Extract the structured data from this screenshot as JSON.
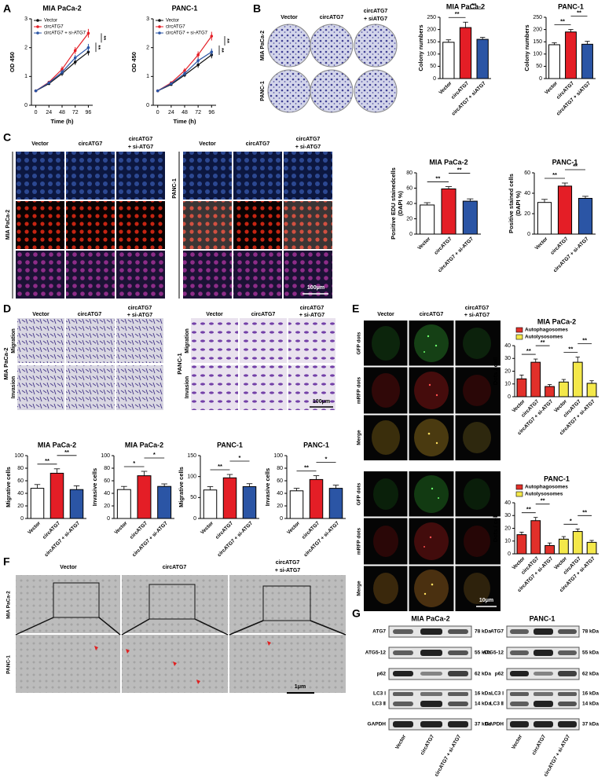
{
  "figure": {
    "panel_labels": [
      "A",
      "B",
      "C",
      "D",
      "E",
      "F",
      "G"
    ],
    "header": {
      "vector": "Vector",
      "circ": "circATG7",
      "si_b": "+ siATG7",
      "si": "+ si-ATG7"
    },
    "cells": [
      "MIA PaCa-2",
      "PANC-1"
    ],
    "rows_d": [
      "Migration",
      "Invasion"
    ],
    "rows_e": [
      "GFP dots",
      "mRFP dots",
      "Merge"
    ],
    "scale_bars": [
      "100μm",
      "100μm",
      "10μm",
      "1μm"
    ],
    "blot": {
      "proteins": [
        "ATG7",
        "ATG5-12",
        "p62",
        "LC3 Ⅰ",
        "LC3 Ⅱ",
        "GAPDH"
      ],
      "sizes": [
        "78 kDa",
        "55 kDa",
        "62 kDa",
        "16 kDa",
        "14 kDa",
        "37 kDa"
      ],
      "lanes": [
        "Vector",
        "circATG7",
        "circATG7 + si-ATG7"
      ]
    }
  },
  "chart_data": [
    {
      "type": "line",
      "title": "MIA PaCa-2",
      "xlabel": "Time (h)",
      "ylabel": "OD 450",
      "x": [
        0,
        24,
        48,
        72,
        96
      ],
      "xlim": [
        -8,
        104
      ],
      "xticks": [
        0,
        24,
        48,
        72,
        96
      ],
      "ylim": [
        0,
        3
      ],
      "yticks": [
        0,
        1,
        2,
        3
      ],
      "series": [
        {
          "name": "Vector",
          "color": "#111111",
          "values": [
            0.5,
            0.75,
            1.1,
            1.5,
            1.85
          ],
          "errors": [
            0.02,
            0.05,
            0.08,
            0.1,
            0.12
          ]
        },
        {
          "name": "circATG7",
          "color": "#e41e26",
          "values": [
            0.5,
            0.8,
            1.25,
            1.9,
            2.5
          ],
          "errors": [
            0.02,
            0.05,
            0.1,
            0.12,
            0.15
          ]
        },
        {
          "name": "circATG7 + si-ATG7",
          "color": "#2b55a5",
          "values": [
            0.5,
            0.78,
            1.15,
            1.65,
            2.0
          ],
          "errors": [
            0.02,
            0.05,
            0.08,
            0.1,
            0.13
          ]
        }
      ],
      "annotations": [
        "**",
        "**"
      ]
    },
    {
      "type": "line",
      "title": "PANC-1",
      "xlabel": "Time (h)",
      "ylabel": "OD 450",
      "x": [
        0,
        24,
        48,
        72,
        96
      ],
      "xlim": [
        -8,
        104
      ],
      "xticks": [
        0,
        24,
        48,
        72,
        96
      ],
      "ylim": [
        0,
        3
      ],
      "yticks": [
        0,
        1,
        2,
        3
      ],
      "series": [
        {
          "name": "Vector",
          "color": "#111111",
          "values": [
            0.5,
            0.72,
            1.05,
            1.4,
            1.75
          ],
          "errors": [
            0.02,
            0.04,
            0.07,
            0.1,
            0.12
          ]
        },
        {
          "name": "circATG7",
          "color": "#e41e26",
          "values": [
            0.5,
            0.78,
            1.2,
            1.75,
            2.4
          ],
          "errors": [
            0.02,
            0.05,
            0.09,
            0.12,
            0.15
          ]
        },
        {
          "name": "circATG7 + si-ATG7",
          "color": "#2b55a5",
          "values": [
            0.5,
            0.75,
            1.1,
            1.55,
            1.85
          ],
          "errors": [
            0.02,
            0.05,
            0.08,
            0.1,
            0.12
          ]
        }
      ],
      "annotations": [
        "**",
        "**"
      ]
    },
    {
      "type": "bar",
      "title": "MIA PaCa-2",
      "ylabel": "Colony numbers",
      "categories": [
        "Vector",
        "circATG7",
        "circATG7 + siATG7"
      ],
      "values": [
        148,
        208,
        160
      ],
      "errors": [
        10,
        22,
        8
      ],
      "colors": [
        "#ffffff",
        "#e41e26",
        "#2b55a5"
      ],
      "ylim": [
        0,
        250
      ],
      "yticks": [
        0,
        50,
        100,
        150,
        200,
        250
      ],
      "annotations": [
        "**",
        "**"
      ]
    },
    {
      "type": "bar",
      "title": "PANC-1",
      "ylabel": "Colony numbers",
      "categories": [
        "Vector",
        "circATG7",
        "circATG7 + siATG7"
      ],
      "values": [
        138,
        190,
        140
      ],
      "errors": [
        8,
        10,
        12
      ],
      "colors": [
        "#ffffff",
        "#e41e26",
        "#2b55a5"
      ],
      "ylim": [
        0,
        250
      ],
      "yticks": [
        0,
        50,
        100,
        150,
        200,
        250
      ],
      "annotations": [
        "**",
        "**"
      ]
    },
    {
      "type": "bar",
      "title": "MIA PaCa-2",
      "ylabel": [
        "Positive EDU stainedcells",
        "(DAPI %)"
      ],
      "categories": [
        "Vector",
        "circATG7",
        "circATG7 + si-ATG7"
      ],
      "values": [
        38,
        59,
        43
      ],
      "errors": [
        3,
        3,
        3
      ],
      "colors": [
        "#ffffff",
        "#e41e26",
        "#2b55a5"
      ],
      "ylim": [
        0,
        80
      ],
      "yticks": [
        0,
        20,
        40,
        60,
        80
      ],
      "annotations": [
        "**",
        "**"
      ]
    },
    {
      "type": "bar",
      "title": "PANC-1",
      "ylabel": [
        "Positive stained cells",
        "(DAPI %)"
      ],
      "categories": [
        "Vector",
        "circATG7",
        "circATG7 + si-ATG7"
      ],
      "values": [
        31,
        47,
        35
      ],
      "errors": [
        3,
        3,
        2
      ],
      "colors": [
        "#ffffff",
        "#e41e26",
        "#2b55a5"
      ],
      "ylim": [
        0,
        60
      ],
      "yticks": [
        0,
        20,
        40,
        60
      ],
      "annotations": [
        "**",
        "**"
      ]
    },
    {
      "type": "bar",
      "title": "MIA PaCa-2",
      "ylabel": "Migrative cells",
      "categories": [
        "Vector",
        "circATG7",
        "circATG7 + si-ATG7"
      ],
      "values": [
        48,
        72,
        46
      ],
      "errors": [
        6,
        7,
        6
      ],
      "colors": [
        "#ffffff",
        "#e41e26",
        "#2b55a5"
      ],
      "ylim": [
        0,
        100
      ],
      "yticks": [
        0,
        20,
        40,
        60,
        80,
        100
      ],
      "annotations": [
        "**",
        "**"
      ]
    },
    {
      "type": "bar",
      "title": "MIA PaCa-2",
      "ylabel": "Invasive cells",
      "categories": [
        "Vector",
        "circATG7",
        "circATG7 + si-ATG7"
      ],
      "values": [
        46,
        68,
        51
      ],
      "errors": [
        5,
        7,
        4
      ],
      "colors": [
        "#ffffff",
        "#e41e26",
        "#2b55a5"
      ],
      "ylim": [
        0,
        100
      ],
      "yticks": [
        0,
        20,
        40,
        60,
        80,
        100
      ],
      "annotations": [
        "*",
        "*"
      ]
    },
    {
      "type": "bar",
      "title": "PANC-1",
      "ylabel": "Migrative cells",
      "categories": [
        "Vector",
        "circATG7",
        "circATG7 + si-ATG7"
      ],
      "values": [
        68,
        97,
        76
      ],
      "errors": [
        8,
        8,
        7
      ],
      "colors": [
        "#ffffff",
        "#e41e26",
        "#2b55a5"
      ],
      "ylim": [
        0,
        150
      ],
      "yticks": [
        0,
        50,
        100,
        150
      ],
      "annotations": [
        "**",
        "*"
      ]
    },
    {
      "type": "bar",
      "title": "PANC-1",
      "ylabel": "Invasive cells",
      "categories": [
        "Vector",
        "circATG7",
        "circATG7 + si-ATG7"
      ],
      "values": [
        44,
        62,
        48
      ],
      "errors": [
        4,
        6,
        5
      ],
      "colors": [
        "#ffffff",
        "#e41e26",
        "#2b55a5"
      ],
      "ylim": [
        0,
        100
      ],
      "yticks": [
        0,
        20,
        40,
        60,
        80,
        100
      ],
      "annotations": [
        "**",
        "*"
      ]
    },
    {
      "type": "bar",
      "title": "MIA PaCa-2",
      "ylabel": "Dots / cell",
      "categories": [
        "Vector",
        "circATG7",
        "circATG7 + si-ATG7"
      ],
      "ylim": [
        0,
        40
      ],
      "yticks": [
        0,
        10,
        20,
        30,
        40
      ],
      "series": [
        {
          "name": "Autophagosomes",
          "color": "#e2302a",
          "values": [
            14,
            27,
            8
          ],
          "errors": [
            3,
            2.5,
            1.5
          ]
        },
        {
          "name": "Autolysosomes",
          "color": "#f4e84a",
          "values": [
            11.5,
            27,
            10.5
          ],
          "errors": [
            2,
            4,
            2
          ]
        }
      ],
      "annotations": [
        "**",
        "**",
        "**",
        "**"
      ]
    },
    {
      "type": "bar",
      "title": "PANC-1",
      "ylabel": "Dots / cell",
      "categories": [
        "Vector",
        "circATG7",
        "circATG7 + si-ATG7"
      ],
      "ylim": [
        0,
        40
      ],
      "yticks": [
        0,
        10,
        20,
        30,
        40
      ],
      "series": [
        {
          "name": "Autophagosomes",
          "color": "#e2302a",
          "values": [
            15,
            26,
            6.5
          ],
          "errors": [
            2,
            2.5,
            2
          ]
        },
        {
          "name": "Autolysosomes",
          "color": "#f4e84a",
          "values": [
            11.5,
            17.5,
            9
          ],
          "errors": [
            2,
            2,
            1.5
          ]
        }
      ],
      "annotations": [
        "**",
        "**",
        "*",
        "**"
      ]
    }
  ]
}
